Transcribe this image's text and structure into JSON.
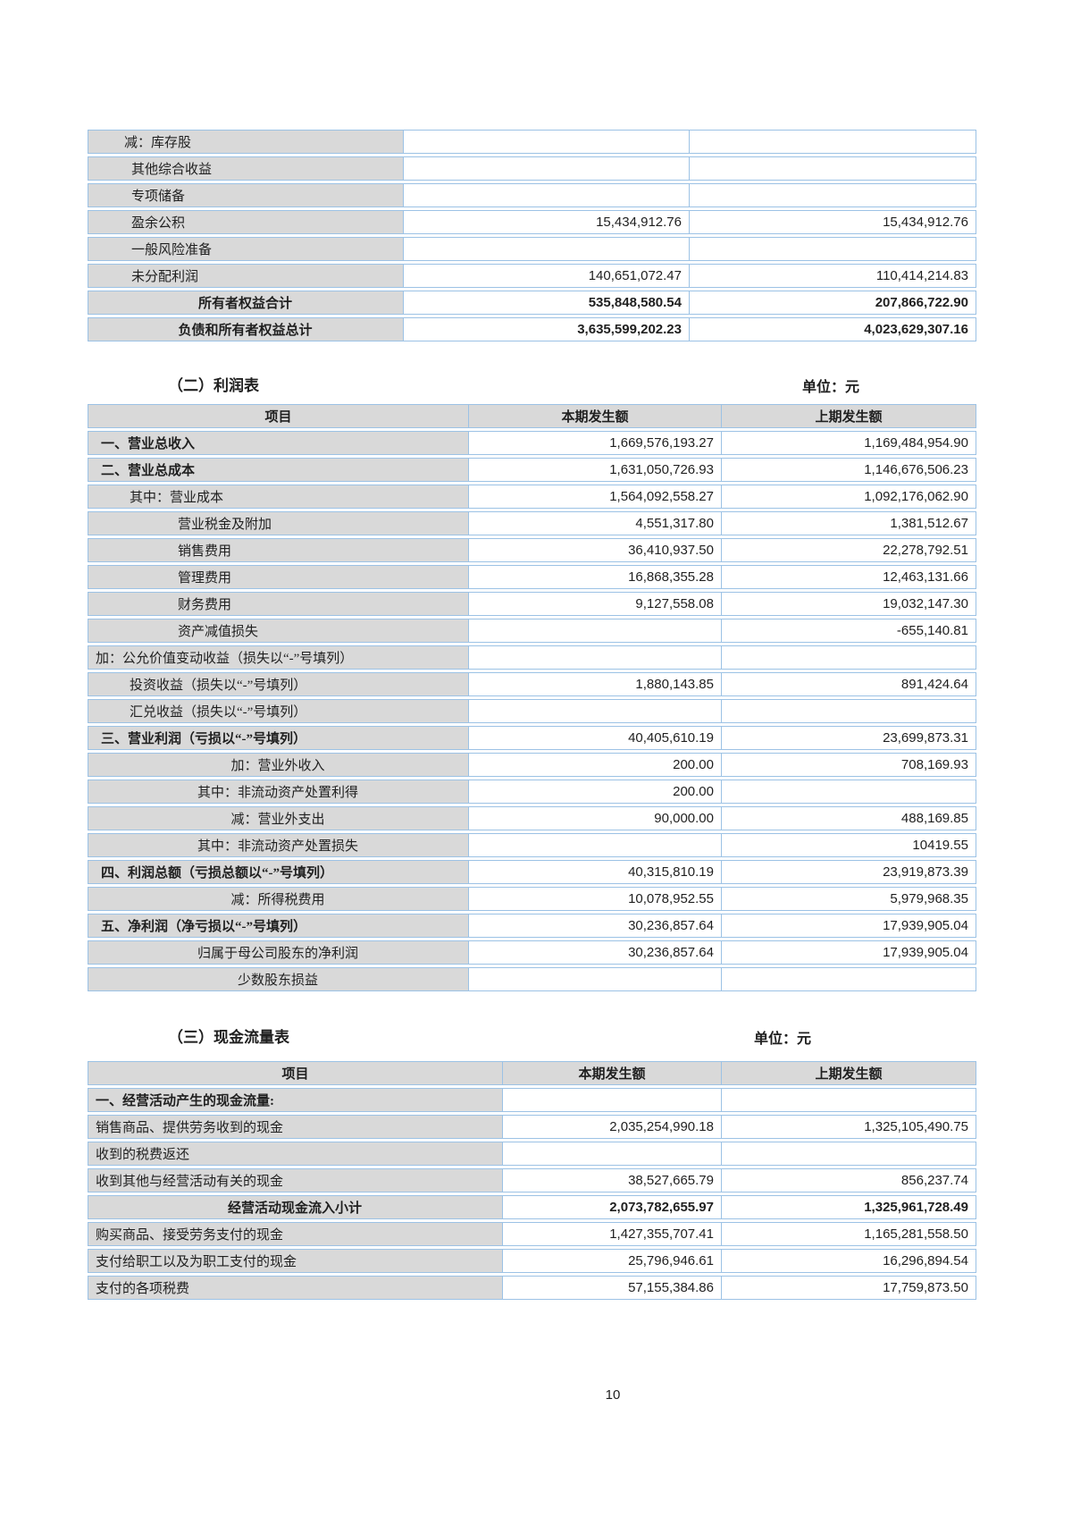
{
  "colors": {
    "border": "#9cc2e5",
    "header_fill": "#d9d9d9"
  },
  "page_number": "10",
  "sections": {
    "equity": {
      "rows": [
        {
          "l": "减：库存股",
          "c": "",
          "p": "",
          "cls": "i40"
        },
        {
          "l": "其他综合收益",
          "c": "",
          "p": "",
          "cls": "i48"
        },
        {
          "l": "专项储备",
          "c": "",
          "p": "",
          "cls": "i48"
        },
        {
          "l": "盈余公积",
          "c": "15,434,912.76",
          "p": "15,434,912.76",
          "cls": "i48"
        },
        {
          "l": "一般风险准备",
          "c": "",
          "p": "",
          "cls": "i48"
        },
        {
          "l": "未分配利润",
          "c": "140,651,072.47",
          "p": "110,414,214.83",
          "cls": "i48"
        },
        {
          "l": "所有者权益合计",
          "c": "535,848,580.54",
          "p": "207,866,722.90",
          "cls": "ctr lb vb"
        },
        {
          "l": "负债和所有者权益总计",
          "c": "3,635,599,202.23",
          "p": "4,023,629,307.16",
          "cls": "ctr lb vb"
        }
      ]
    },
    "income": {
      "title": "（二）利润表",
      "unit": "单位：元",
      "headers": [
        "项目",
        "本期发生额",
        "上期发生额"
      ],
      "rows": [
        {
          "l": "一、营业总收入",
          "c": "1,669,576,193.27",
          "p": "1,169,484,954.90",
          "cls": "i14 lb"
        },
        {
          "l": "二、营业总成本",
          "c": "1,631,050,726.93",
          "p": "1,146,676,506.23",
          "cls": "i14 lb"
        },
        {
          "l": "其中：营业成本",
          "c": "1,564,092,558.27",
          "p": "1,092,176,062.90",
          "cls": "i46"
        },
        {
          "l": "营业税金及附加",
          "c": "4,551,317.80",
          "p": "1,381,512.67",
          "cls": "i100"
        },
        {
          "l": "销售费用",
          "c": "36,410,937.50",
          "p": "22,278,792.51",
          "cls": "i100"
        },
        {
          "l": "管理费用",
          "c": "16,868,355.28",
          "p": "12,463,131.66",
          "cls": "i100"
        },
        {
          "l": "财务费用",
          "c": "9,127,558.08",
          "p": "19,032,147.30",
          "cls": "i100"
        },
        {
          "l": "资产减值损失",
          "c": "",
          "p": "-655,140.81",
          "cls": "i100"
        },
        {
          "l": "加：公允价值变动收益（损失以“-”号填列）",
          "c": "",
          "p": "",
          "cls": "i8"
        },
        {
          "l": "投资收益（损失以“-”号填列）",
          "c": "1,880,143.85",
          "p": "891,424.64",
          "cls": "i46"
        },
        {
          "l": "汇兑收益（损失以“-”号填列）",
          "c": "",
          "p": "",
          "cls": "i46"
        },
        {
          "l": "三、营业利润（亏损以“-”号填列）",
          "c": "40,405,610.19",
          "p": "23,699,873.31",
          "cls": "i14 lb"
        },
        {
          "l": "加：营业外收入",
          "c": "200.00",
          "p": "708,169.93",
          "cls": "ctr"
        },
        {
          "l": "其中：非流动资产处置利得",
          "c": "200.00",
          "p": "",
          "cls": "ctr"
        },
        {
          "l": "减：营业外支出",
          "c": "90,000.00",
          "p": "488,169.85",
          "cls": "ctr"
        },
        {
          "l": "其中：非流动资产处置损失",
          "c": "",
          "p": "10419.55",
          "cls": "ctr"
        },
        {
          "l": "四、利润总额（亏损总额以“-”号填列）",
          "c": "40,315,810.19",
          "p": "23,919,873.39",
          "cls": "i14 lb"
        },
        {
          "l": "减：所得税费用",
          "c": "10,078,952.55",
          "p": "5,979,968.35",
          "cls": "ctr"
        },
        {
          "l": "五、净利润（净亏损以“-”号填列）",
          "c": "30,236,857.64",
          "p": "17,939,905.04",
          "cls": "i14 lb"
        },
        {
          "l": "归属于母公司股东的净利润",
          "c": "30,236,857.64",
          "p": "17,939,905.04",
          "cls": "ctr"
        },
        {
          "l": "少数股东损益",
          "c": "",
          "p": "",
          "cls": "ctr"
        }
      ]
    },
    "cashflow": {
      "title": "（三）现金流量表",
      "unit": "单位：元",
      "headers": [
        "项目",
        "本期发生额",
        "上期发生额"
      ],
      "rows": [
        {
          "l": "一、经营活动产生的现金流量:",
          "c": "",
          "p": "",
          "cls": "i8 lb"
        },
        {
          "l": "销售商品、提供劳务收到的现金",
          "c": "2,035,254,990.18",
          "p": "1,325,105,490.75",
          "cls": "i8"
        },
        {
          "l": "收到的税费返还",
          "c": "",
          "p": "",
          "cls": "i8"
        },
        {
          "l": "收到其他与经营活动有关的现金",
          "c": "38,527,665.79",
          "p": "856,237.74",
          "cls": "i8"
        },
        {
          "l": "经营活动现金流入小计",
          "c": "2,073,782,655.97",
          "p": "1,325,961,728.49",
          "cls": "ctr lb vb"
        },
        {
          "l": "购买商品、接受劳务支付的现金",
          "c": "1,427,355,707.41",
          "p": "1,165,281,558.50",
          "cls": "i8"
        },
        {
          "l": "支付给职工以及为职工支付的现金",
          "c": "25,796,946.61",
          "p": "16,296,894.54",
          "cls": "i8"
        },
        {
          "l": "支付的各项税费",
          "c": "57,155,384.86",
          "p": "17,759,873.50",
          "cls": "i8"
        }
      ]
    }
  }
}
